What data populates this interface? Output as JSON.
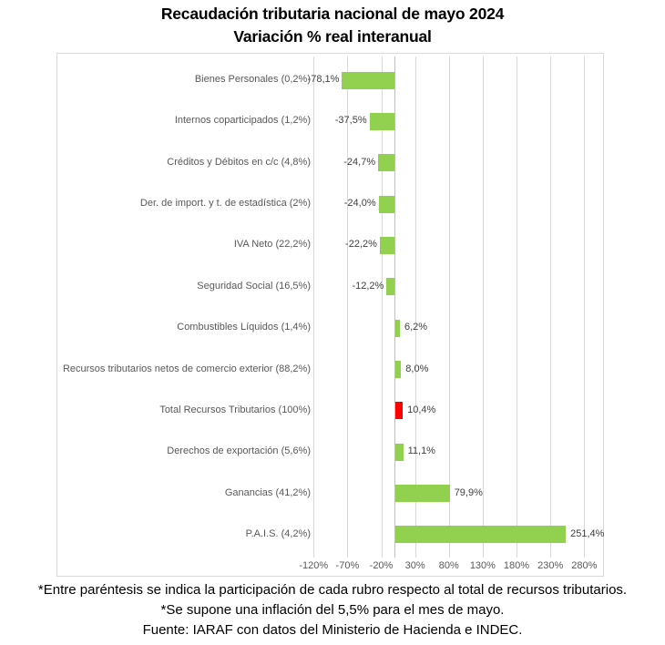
{
  "title": {
    "line1": "Recaudación tributaria nacional de mayo 2024",
    "line2": "Variación % real interanual"
  },
  "chart_data": {
    "type": "bar",
    "orientation": "horizontal",
    "title": "Recaudación tributaria nacional de mayo 2024 — Variación % real interanual",
    "categories": [
      "Bienes Personales (0,2%)",
      "Internos coparticipados (1,2%)",
      "Créditos y Débitos en c/c (4,8%)",
      "Der. de import. y t. de estadística (2%)",
      "IVA Neto (22,2%)",
      "Seguridad Social (16,5%)",
      "Combustibles Líquidos (1,4%)",
      "Recursos tributarios netos de comercio exterior (88,2%)",
      "Total Recursos Tributarios (100%)",
      "Derechos de exportación (5,6%)",
      "Ganancias (41,2%)",
      "P.A.I.S. (4,2%)"
    ],
    "values": [
      -78.1,
      -37.5,
      -24.7,
      -24.0,
      -22.2,
      -12.2,
      6.2,
      8.0,
      10.4,
      11.1,
      79.9,
      251.4
    ],
    "value_labels": [
      "-78,1%",
      "-37,5%",
      "-24,7%",
      "-24,0%",
      "-22,2%",
      "-12,2%",
      "6,2%",
      "8,0%",
      "10,4%",
      "11,1%",
      "79,9%",
      "251,4%"
    ],
    "bar_colors": [
      "#92D050",
      "#92D050",
      "#92D050",
      "#92D050",
      "#92D050",
      "#92D050",
      "#92D050",
      "#92D050",
      "#FF0000",
      "#92D050",
      "#92D050",
      "#92D050"
    ],
    "accent_colors": {
      "green": "#92D050",
      "red": "#FF0000"
    },
    "x_axis": {
      "tick_labels": [
        "-120%",
        "-70%",
        "-20%",
        "30%",
        "80%",
        "130%",
        "180%",
        "230%",
        "280%"
      ],
      "tick_values": [
        -120,
        -70,
        -20,
        30,
        80,
        130,
        180,
        230,
        280
      ],
      "min": -145,
      "max": 305
    },
    "grid": true,
    "legend": false
  },
  "footnotes": {
    "line1": "*Entre paréntesis se indica la participación de cada rubro respecto al total de recursos tributarios.",
    "line2": "*Se supone una inflación del 5,5% para el mes de mayo.",
    "line3": "Fuente: IARAF con datos del Ministerio de Hacienda e INDEC."
  }
}
